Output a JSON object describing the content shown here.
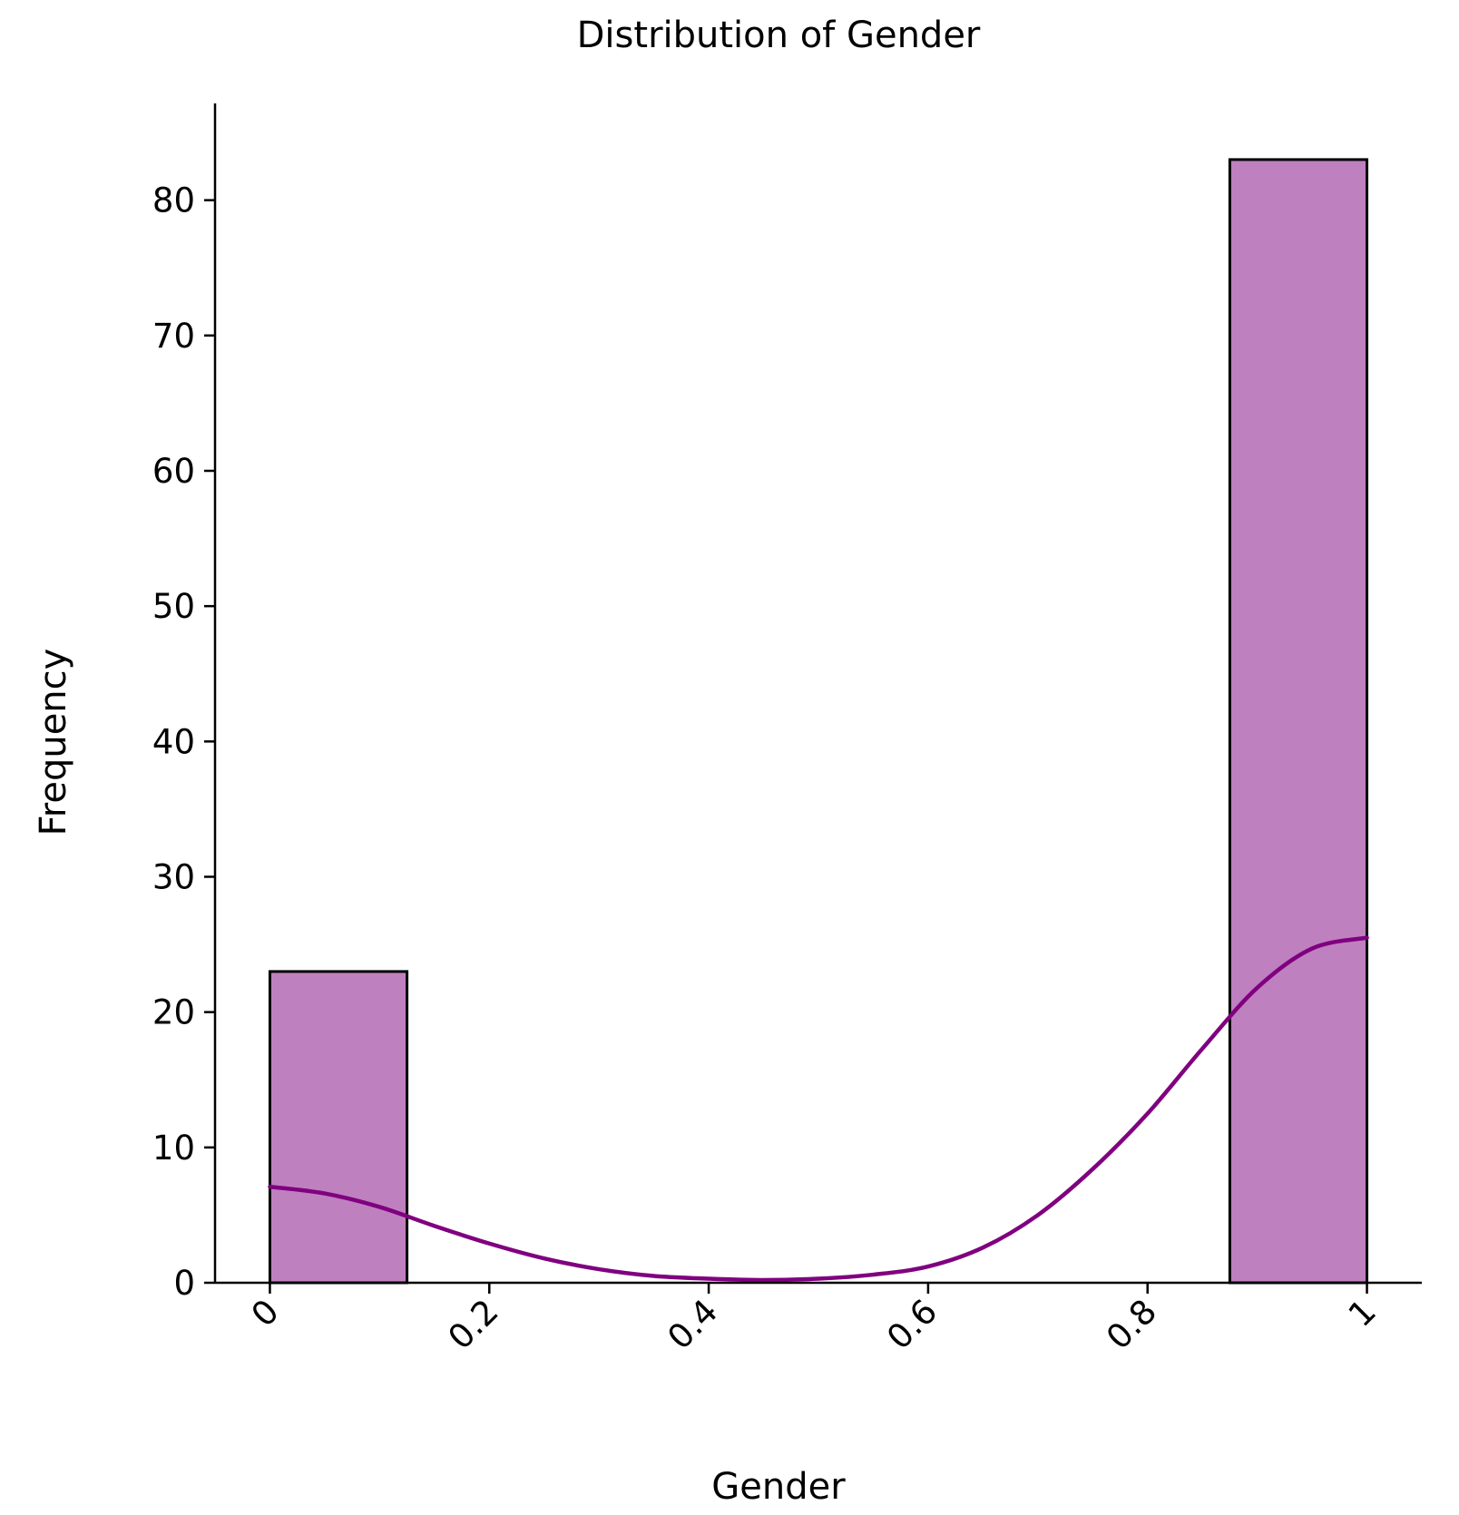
{
  "chart_data": {
    "type": "bar",
    "title": "Distribution of Gender",
    "xlabel": "Gender",
    "ylabel": "Frequency",
    "bins": [
      {
        "start": 0.0,
        "end": 0.125,
        "count": 23
      },
      {
        "start": 0.875,
        "end": 1.0,
        "count": 83
      }
    ],
    "kde": {
      "name": "kde",
      "x": [
        0.0,
        0.05,
        0.1,
        0.15,
        0.2,
        0.25,
        0.3,
        0.35,
        0.4,
        0.45,
        0.5,
        0.55,
        0.6,
        0.65,
        0.7,
        0.75,
        0.8,
        0.85,
        0.9,
        0.95,
        1.0
      ],
      "y": [
        7.1,
        6.6,
        5.6,
        4.2,
        2.9,
        1.8,
        1.0,
        0.5,
        0.3,
        0.2,
        0.3,
        0.6,
        1.2,
        2.6,
        5.0,
        8.4,
        12.5,
        17.3,
        21.8,
        24.7,
        25.5
      ]
    },
    "xticks": [
      0,
      0.2,
      0.4,
      0.6,
      0.8,
      1
    ],
    "xtick_labels": [
      "0",
      "0.2",
      "0.4",
      "0.6",
      "0.8",
      "1"
    ],
    "yticks": [
      0,
      10,
      20,
      30,
      40,
      50,
      60,
      70,
      80
    ],
    "ytick_labels": [
      "0",
      "10",
      "20",
      "30",
      "40",
      "50",
      "60",
      "70",
      "80"
    ],
    "xlim": [
      -0.05,
      1.05
    ],
    "ylim": [
      0,
      87.15
    ],
    "grid": false,
    "colors": {
      "bar_fill": "#bf80bf",
      "bar_edge": "#000000",
      "kde_line": "#800080",
      "axis": "#000000"
    }
  }
}
